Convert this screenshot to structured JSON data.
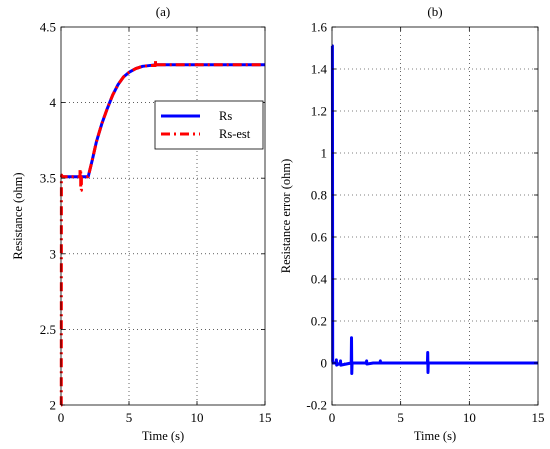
{
  "chart_data": [
    {
      "type": "line",
      "title": "(a)",
      "xlabel": "Time (s)",
      "ylabel": "Resistance  (ohm)",
      "xlim": [
        0,
        15
      ],
      "ylim": [
        2,
        4.5
      ],
      "xticks": [
        0,
        5,
        10,
        15
      ],
      "xtick_labels": [
        "0",
        "5",
        "10",
        "15"
      ],
      "yticks": [
        2,
        2.5,
        3,
        3.5,
        4,
        4.5
      ],
      "ytick_labels": [
        "2",
        "2.5",
        "3",
        "3.5",
        "4",
        "4.5"
      ],
      "grid": true,
      "legend": "right-middle",
      "series": [
        {
          "name": "Rs",
          "color": "#0000ff",
          "style": "solid",
          "x": [
            0,
            2.0,
            2.3,
            2.6,
            3.0,
            3.4,
            3.8,
            4.2,
            4.6,
            5.0,
            5.5,
            6.0,
            6.5,
            7.0,
            8.0,
            9.0,
            10,
            12,
            15
          ],
          "y": [
            3.51,
            3.51,
            3.62,
            3.74,
            3.86,
            3.96,
            4.05,
            4.12,
            4.17,
            4.2,
            4.225,
            4.24,
            4.245,
            4.25,
            4.25,
            4.25,
            4.25,
            4.25,
            4.25
          ]
        },
        {
          "name": "Rs-est",
          "color": "#ff0000",
          "style": "dashdot",
          "x": [
            0,
            0.02,
            0.03,
            0.05,
            0.1,
            1.4,
            1.4,
            1.45,
            1.45,
            1.5,
            1.5,
            2.0,
            2.3,
            2.6,
            3.0,
            3.4,
            3.8,
            4.2,
            4.6,
            5.0,
            5.5,
            6.0,
            6.5,
            6.95,
            6.95,
            7.0,
            7.0,
            7.1,
            8.0,
            9.0,
            10,
            12,
            15
          ],
          "y": [
            2.0,
            2.0,
            3.5,
            3.52,
            3.51,
            3.51,
            3.56,
            3.56,
            3.42,
            3.42,
            3.51,
            3.51,
            3.62,
            3.74,
            3.86,
            3.96,
            4.05,
            4.12,
            4.17,
            4.2,
            4.225,
            4.24,
            4.245,
            4.245,
            4.275,
            4.275,
            4.23,
            4.25,
            4.25,
            4.25,
            4.25,
            4.25,
            4.25
          ]
        }
      ]
    },
    {
      "type": "line",
      "title": "(b)",
      "xlabel": "Time (s)",
      "ylabel": "Resistance error  (ohm)",
      "xlim": [
        0,
        15
      ],
      "ylim": [
        -0.2,
        1.6
      ],
      "xticks": [
        0,
        5,
        10,
        15
      ],
      "xtick_labels": [
        "0",
        "5",
        "10",
        "15"
      ],
      "yticks": [
        -0.2,
        0,
        0.2,
        0.4,
        0.6,
        0.8,
        1,
        1.2,
        1.4,
        1.6
      ],
      "ytick_labels": [
        "-0.2",
        "0",
        "0.2",
        "0.4",
        "0.6",
        "0.8",
        "1",
        "1.2",
        "1.4",
        "1.6"
      ],
      "grid": true,
      "series": [
        {
          "color": "#0000ff",
          "style": "solid",
          "x": [
            0,
            0.03,
            0.05,
            0.07,
            0.1,
            0.3,
            0.32,
            0.34,
            0.6,
            0.62,
            0.64,
            1.4,
            1.42,
            1.44,
            1.46,
            1.5,
            2.0,
            2.5,
            2.52,
            2.54,
            3.0,
            3.5,
            3.52,
            3.54,
            4.0,
            4.5,
            5.0,
            6.95,
            6.97,
            6.99,
            7.01,
            7.05,
            8.0,
            10,
            12,
            15
          ],
          "y": [
            1.51,
            1.51,
            0.01,
            0.0,
            0.0,
            0.0,
            0.015,
            -0.01,
            0.0,
            0.01,
            -0.01,
            0.0,
            0.12,
            -0.05,
            0.0,
            0.0,
            0.0,
            0.0,
            0.01,
            -0.005,
            0.0,
            0.0,
            0.01,
            0.0,
            0.0,
            0.0,
            0.0,
            0.0,
            0.05,
            -0.045,
            0.0,
            0.0,
            0.0,
            0.0,
            0.0,
            0.0
          ]
        }
      ]
    }
  ]
}
